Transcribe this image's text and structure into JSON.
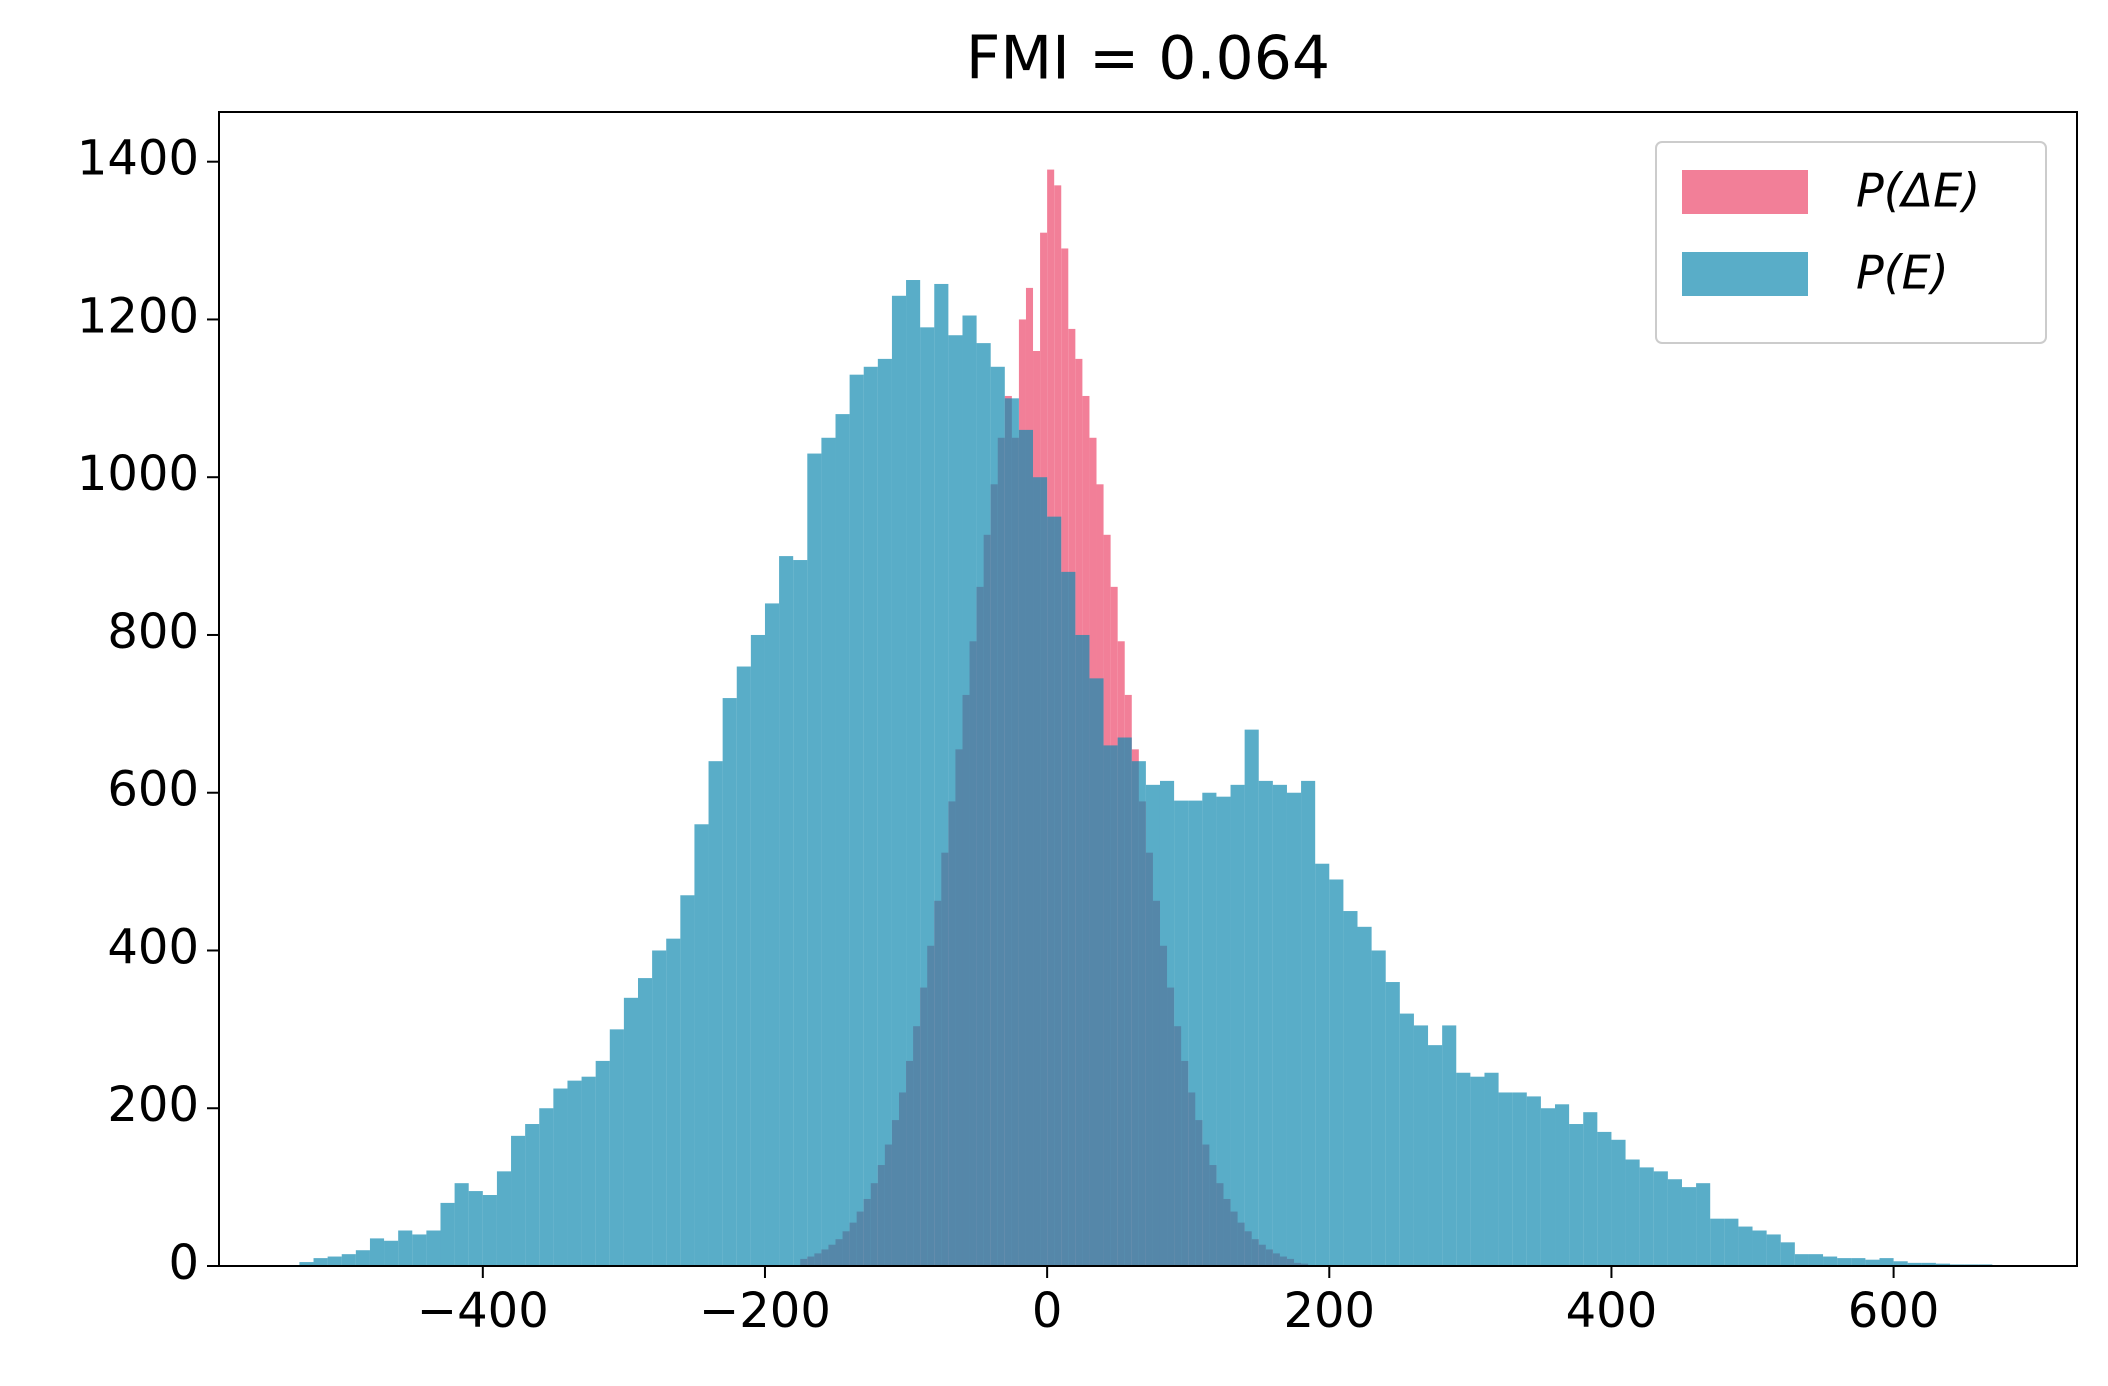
{
  "chart_data": {
    "type": "histogram",
    "title": "FMI = 0.064",
    "xlim": [
      -587,
      730
    ],
    "ylim": [
      0,
      1463
    ],
    "xticks": [
      {
        "value": -400,
        "label": "−400"
      },
      {
        "value": -200,
        "label": "−200"
      },
      0,
      200,
      400,
      600
    ],
    "yticks": [
      0,
      200,
      400,
      600,
      800,
      1000,
      1200,
      1400
    ],
    "legend": "upper right",
    "series": [
      {
        "name": "P(ΔE)",
        "color": "#f27f98",
        "alpha": 1,
        "bins": [
          -175,
          -170,
          -165,
          -160,
          -155,
          -150,
          -145,
          -140,
          -135,
          -130,
          -125,
          -120,
          -115,
          -110,
          -105,
          -100,
          -95,
          -90,
          -85,
          -80,
          -75,
          -70,
          -65,
          -60,
          -55,
          -50,
          -45,
          -40,
          -35,
          -30,
          -25,
          -20,
          -15,
          -10,
          -5,
          0,
          5,
          10,
          15,
          20,
          25,
          30,
          35,
          40,
          45,
          50,
          55,
          60,
          65,
          70,
          75,
          80,
          85,
          90,
          95,
          100,
          105,
          110,
          115,
          120,
          125,
          130,
          135,
          140,
          145,
          150,
          155,
          160,
          165,
          170,
          175,
          180,
          185
        ],
        "values": [
          9,
          12,
          16,
          21,
          27,
          34,
          44,
          55,
          69,
          85,
          105,
          128,
          154,
          185,
          220,
          260,
          304,
          353,
          406,
          463,
          524,
          589,
          655,
          724,
          792,
          861,
          927,
          991,
          1050,
          1103,
          1050,
          1200,
          1240,
          1160,
          1310,
          1390,
          1370,
          1290,
          1188,
          1150,
          1103,
          1050,
          991,
          927,
          861,
          792,
          724,
          655,
          589,
          524,
          463,
          406,
          353,
          304,
          260,
          220,
          185,
          154,
          128,
          105,
          85,
          69,
          55,
          44,
          34,
          27,
          21,
          16,
          12,
          9,
          4,
          3
        ]
      },
      {
        "name": "P(E)",
        "color": "#138ab0",
        "alpha": 0.7,
        "bins": [
          -530,
          -520,
          -510,
          -500,
          -490,
          -480,
          -470,
          -460,
          -450,
          -440,
          -430,
          -420,
          -410,
          -400,
          -390,
          -380,
          -370,
          -360,
          -350,
          -340,
          -330,
          -320,
          -310,
          -300,
          -290,
          -280,
          -270,
          -260,
          -250,
          -240,
          -230,
          -220,
          -210,
          -200,
          -190,
          -180,
          -170,
          -160,
          -150,
          -140,
          -130,
          -120,
          -110,
          -100,
          -90,
          -80,
          -70,
          -60,
          -50,
          -40,
          -30,
          -20,
          -10,
          0,
          10,
          20,
          30,
          40,
          50,
          60,
          70,
          80,
          90,
          100,
          110,
          120,
          130,
          140,
          150,
          160,
          170,
          180,
          190,
          200,
          210,
          220,
          230,
          240,
          250,
          260,
          270,
          280,
          290,
          300,
          310,
          320,
          330,
          340,
          350,
          360,
          370,
          380,
          390,
          400,
          410,
          420,
          430,
          440,
          450,
          460,
          470,
          480,
          490,
          500,
          510,
          520,
          530,
          540,
          550,
          560,
          570,
          580,
          590,
          600,
          610,
          620,
          630,
          640,
          650,
          660,
          670
        ],
        "values": [
          5,
          10,
          12,
          15,
          20,
          35,
          32,
          45,
          40,
          45,
          80,
          105,
          95,
          90,
          120,
          165,
          180,
          200,
          225,
          235,
          240,
          260,
          300,
          340,
          365,
          400,
          415,
          470,
          560,
          640,
          720,
          760,
          800,
          840,
          900,
          895,
          1030,
          1050,
          1080,
          1130,
          1140,
          1150,
          1230,
          1250,
          1190,
          1245,
          1180,
          1205,
          1170,
          1140,
          1100,
          1060,
          1000,
          950,
          880,
          800,
          745,
          660,
          670,
          640,
          610,
          615,
          590,
          590,
          600,
          595,
          610,
          680,
          615,
          610,
          600,
          615,
          510,
          490,
          450,
          430,
          400,
          360,
          320,
          305,
          280,
          305,
          245,
          240,
          245,
          220,
          220,
          215,
          200,
          205,
          180,
          195,
          170,
          160,
          135,
          125,
          120,
          110,
          100,
          105,
          60,
          60,
          50,
          45,
          40,
          30,
          15,
          15,
          12,
          10,
          10,
          8,
          10,
          6,
          4,
          4,
          3,
          2,
          2,
          2
        ]
      }
    ]
  }
}
